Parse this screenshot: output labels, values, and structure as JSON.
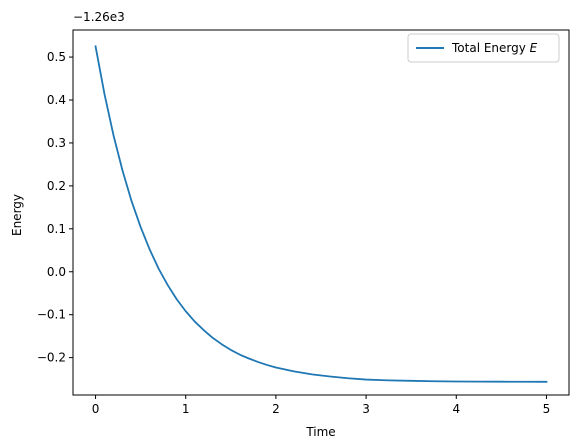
{
  "chart_data": {
    "type": "line",
    "title": "",
    "xlabel": "Time",
    "ylabel": "Energy",
    "axis_offset_text": "−1.26e3",
    "xlim": [
      -0.25,
      5.25
    ],
    "ylim": [
      -0.287,
      0.563
    ],
    "x_ticks": [
      {
        "value": 0,
        "label": "0"
      },
      {
        "value": 1,
        "label": "1"
      },
      {
        "value": 2,
        "label": "2"
      },
      {
        "value": 3,
        "label": "3"
      },
      {
        "value": 4,
        "label": "4"
      },
      {
        "value": 5,
        "label": "5"
      }
    ],
    "y_ticks": [
      {
        "value": -0.2,
        "label": "−0.2"
      },
      {
        "value": -0.1,
        "label": "−0.1"
      },
      {
        "value": 0.0,
        "label": "0.0"
      },
      {
        "value": 0.1,
        "label": "0.1"
      },
      {
        "value": 0.2,
        "label": "0.2"
      },
      {
        "value": 0.3,
        "label": "0.3"
      },
      {
        "value": 0.4,
        "label": "0.4"
      },
      {
        "value": 0.5,
        "label": "0.5"
      }
    ],
    "grid": false,
    "legend": {
      "placement": "top-right"
    },
    "series": [
      {
        "name": "Total Energy ",
        "name_math": "E",
        "color": "#1f77b4",
        "x": [
          0,
          0.1,
          0.2,
          0.3,
          0.4,
          0.5,
          0.6,
          0.7,
          0.8,
          0.9,
          1.0,
          1.1,
          1.2,
          1.3,
          1.4,
          1.5,
          1.6,
          1.7,
          1.8,
          1.9,
          2.0,
          2.2,
          2.4,
          2.6,
          2.8,
          3.0,
          3.25,
          3.5,
          3.75,
          4.0,
          4.25,
          4.5,
          4.75,
          5.0
        ],
        "y": [
          0.525,
          0.413,
          0.317,
          0.235,
          0.164,
          0.104,
          0.052,
          0.007,
          -0.031,
          -0.064,
          -0.092,
          -0.116,
          -0.136,
          -0.154,
          -0.169,
          -0.182,
          -0.193,
          -0.202,
          -0.21,
          -0.217,
          -0.223,
          -0.232,
          -0.239,
          -0.244,
          -0.248,
          -0.251,
          -0.253,
          -0.254,
          -0.255,
          -0.2555,
          -0.2558,
          -0.256,
          -0.2562,
          -0.2563
        ]
      }
    ]
  }
}
